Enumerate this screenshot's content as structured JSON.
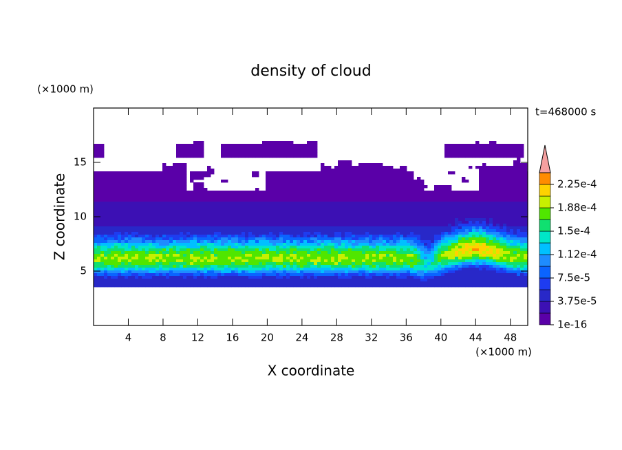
{
  "chart_data": {
    "type": "contour",
    "title": "density of cloud",
    "xlabel": "X coordinate",
    "ylabel": "Z coordinate",
    "x_unit": "(×1000 m)",
    "y_unit": "(×1000 m)",
    "time_label": "t=468000 s",
    "xlim": [
      0,
      50
    ],
    "ylim": [
      0,
      20
    ],
    "xticks": [
      4,
      8,
      12,
      16,
      20,
      24,
      28,
      32,
      36,
      40,
      44,
      48
    ],
    "yticks": [
      5,
      10,
      15
    ],
    "levels": [
      1e-16,
      1.875e-05,
      3.75e-05,
      5.625e-05,
      7.5e-05,
      9.375e-05,
      0.0001125,
      0.00013125,
      0.00015,
      0.00016875,
      0.0001875,
      0.00020625,
      0.000225,
      0.00024375
    ],
    "colors": [
      "#5a00a8",
      "#3c10b4",
      "#2828c8",
      "#1e3cf0",
      "#0a64ff",
      "#1e8cff",
      "#00c0ff",
      "#00e6c8",
      "#10e070",
      "#50e600",
      "#c8f000",
      "#ffd200",
      "#ff8c00"
    ],
    "extend_color": "#f5a0a0",
    "colorbar_ticks": [
      {
        "value": 1e-16,
        "label": "1e-16"
      },
      {
        "value": 3.75e-05,
        "label": "3.75e-5"
      },
      {
        "value": 7.5e-05,
        "label": "7.5e-5"
      },
      {
        "value": 0.0001125,
        "label": "1.12e-4"
      },
      {
        "value": 0.00015,
        "label": "1.5e-4"
      },
      {
        "value": 0.0001875,
        "label": "1.88e-4"
      },
      {
        "value": 0.000225,
        "label": "2.25e-4"
      }
    ]
  }
}
